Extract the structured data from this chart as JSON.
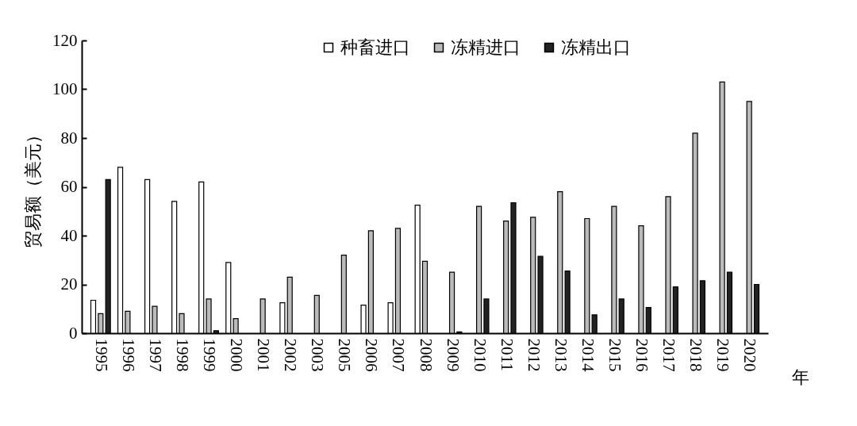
{
  "chart_data": {
    "type": "bar",
    "xlabel": "年",
    "ylabel": "贸易额（美元）",
    "categories": [
      "1995",
      "1996",
      "1997",
      "1998",
      "1999",
      "2000",
      "2001",
      "2002",
      "2003",
      "2005",
      "2006",
      "2007",
      "2008",
      "2009",
      "2010",
      "2011",
      "2012",
      "2013",
      "2014",
      "2015",
      "2016",
      "2017",
      "2018",
      "2019",
      "2020"
    ],
    "series": [
      {
        "name": "种畜进口",
        "color": "#ffffff",
        "values": [
          13.5,
          68,
          63,
          54,
          62,
          29,
          null,
          12.5,
          null,
          null,
          11.5,
          12.5,
          52.5,
          null,
          null,
          null,
          null,
          null,
          null,
          null,
          null,
          null,
          null,
          null,
          null
        ]
      },
      {
        "name": "冻精进口",
        "color": "#bbbbbb",
        "values": [
          8,
          9,
          11,
          8,
          14,
          6,
          14,
          23,
          15.5,
          32,
          42,
          43,
          29.5,
          25,
          52,
          46,
          47.5,
          58,
          47,
          52,
          44,
          56,
          82,
          103,
          95
        ]
      },
      {
        "name": "冻精出口",
        "color": "#222222",
        "values": [
          63,
          null,
          null,
          null,
          1,
          null,
          null,
          null,
          null,
          null,
          null,
          null,
          null,
          0.5,
          14,
          53.5,
          31.5,
          25.5,
          7.5,
          14,
          10.5,
          19,
          21.5,
          25,
          20
        ]
      }
    ],
    "ylim": [
      0,
      120
    ],
    "yticks": [
      0,
      20,
      40,
      60,
      80,
      100,
      120
    ],
    "grid": false,
    "legend": "top"
  }
}
